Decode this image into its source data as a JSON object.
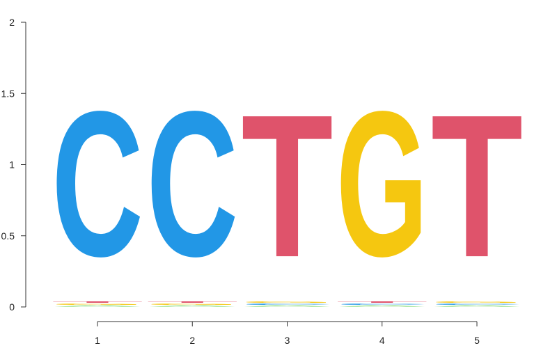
{
  "chart_data": {
    "type": "sequence-logo",
    "title": "",
    "xlabel": "",
    "ylabel": "",
    "ylim": [
      0,
      2
    ],
    "y_ticks": [
      "0",
      "0.5",
      "1",
      "1.5",
      "2"
    ],
    "y_tick_values": [
      0,
      0.5,
      1,
      1.5,
      2
    ],
    "x_ticks": [
      "1",
      "2",
      "3",
      "4",
      "5"
    ],
    "colors": {
      "A": "#61d04f",
      "C": "#2297e6",
      "G": "#f5c710",
      "T": "#df536b"
    },
    "positions": [
      {
        "position": 1,
        "stack": [
          {
            "letter": "A",
            "height": 0.012
          },
          {
            "letter": "G",
            "height": 0.014
          },
          {
            "letter": "T",
            "height": 0.016
          },
          {
            "letter": "C",
            "height": 1.63
          }
        ]
      },
      {
        "position": 2,
        "stack": [
          {
            "letter": "A",
            "height": 0.012
          },
          {
            "letter": "G",
            "height": 0.014
          },
          {
            "letter": "T",
            "height": 0.016
          },
          {
            "letter": "C",
            "height": 1.63
          }
        ]
      },
      {
        "position": 3,
        "stack": [
          {
            "letter": "A",
            "height": 0.012
          },
          {
            "letter": "C",
            "height": 0.014
          },
          {
            "letter": "G",
            "height": 0.016
          },
          {
            "letter": "T",
            "height": 1.6
          }
        ]
      },
      {
        "position": 4,
        "stack": [
          {
            "letter": "A",
            "height": 0.012
          },
          {
            "letter": "C",
            "height": 0.014
          },
          {
            "letter": "T",
            "height": 0.016
          },
          {
            "letter": "G",
            "height": 1.63
          }
        ]
      },
      {
        "position": 5,
        "stack": [
          {
            "letter": "A",
            "height": 0.012
          },
          {
            "letter": "C",
            "height": 0.014
          },
          {
            "letter": "G",
            "height": 0.016
          },
          {
            "letter": "T",
            "height": 1.6
          }
        ]
      }
    ]
  }
}
